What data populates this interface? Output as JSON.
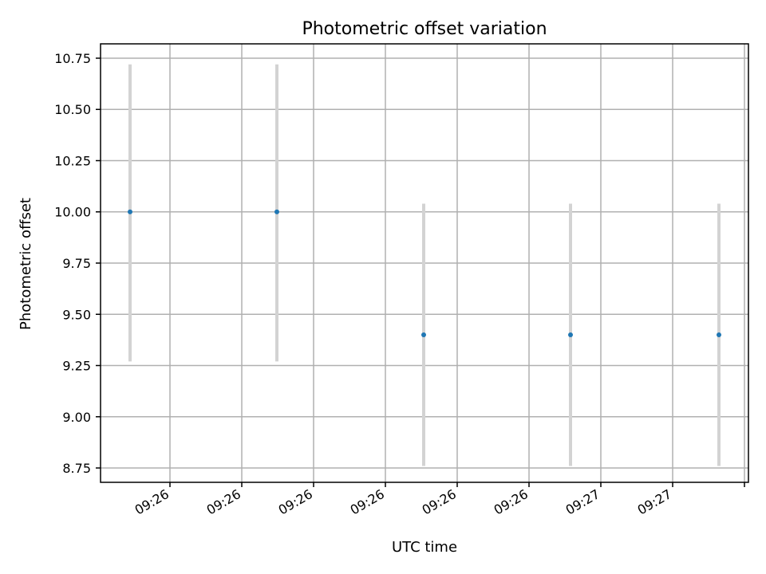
{
  "chart_data": {
    "type": "scatter",
    "title": "Photometric offset variation",
    "xlabel": "UTC time",
    "ylabel": "Photometric offset",
    "ylim": [
      8.68,
      10.82
    ],
    "grid": true,
    "x_tick_labels": [
      "09:26",
      "09:26",
      "09:26",
      "09:26",
      "09:26",
      "09:26",
      "09:27",
      "09:27"
    ],
    "y_ticks": [
      8.75,
      9.0,
      9.25,
      9.5,
      9.75,
      10.0,
      10.25,
      10.5,
      10.75
    ],
    "y_tick_labels": [
      "8.75",
      "9.00",
      "9.25",
      "9.50",
      "9.75",
      "10.00",
      "10.25",
      "10.50",
      "10.75"
    ],
    "points": [
      {
        "y": 10.0,
        "yerr_low": 9.27,
        "yerr_high": 10.72
      },
      {
        "y": 10.0,
        "yerr_low": 9.27,
        "yerr_high": 10.72
      },
      {
        "y": 9.4,
        "yerr_low": 8.76,
        "yerr_high": 10.04
      },
      {
        "y": 9.4,
        "yerr_low": 8.76,
        "yerr_high": 10.04
      },
      {
        "y": 9.4,
        "yerr_low": 8.76,
        "yerr_high": 10.04
      }
    ],
    "colors": {
      "point": "#1f77b4",
      "errorbar": "#d3d3d3",
      "grid": "#b0b0b0"
    }
  }
}
